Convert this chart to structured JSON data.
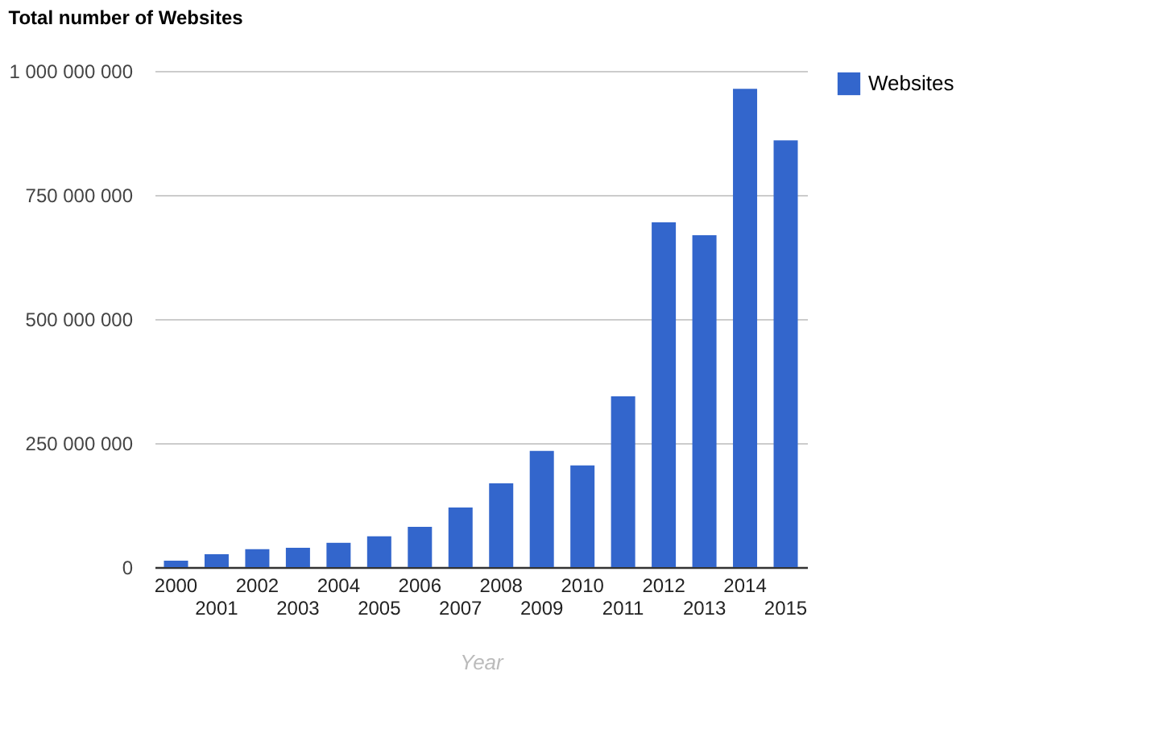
{
  "chart_data": {
    "type": "bar",
    "title": "Total number of Websites",
    "xlabel": "Year",
    "categories": [
      "2000",
      "2001",
      "2002",
      "2003",
      "2004",
      "2005",
      "2006",
      "2007",
      "2008",
      "2009",
      "2010",
      "2011",
      "2012",
      "2013",
      "2014",
      "2015"
    ],
    "series": [
      {
        "name": "Websites",
        "color": "#3366cc",
        "values": [
          13000000,
          26000000,
          36000000,
          39000000,
          49000000,
          62000000,
          81000000,
          120000000,
          169000000,
          234000000,
          205000000,
          344000000,
          695000000,
          669000000,
          964000000,
          860000000
        ]
      }
    ],
    "ylim": [
      0,
      1000000000
    ],
    "yticks": [
      {
        "value": 0,
        "label": "0"
      },
      {
        "value": 250000000,
        "label": "250 000 000"
      },
      {
        "value": 500000000,
        "label": "500 000 000"
      },
      {
        "value": 750000000,
        "label": "750 000 000"
      },
      {
        "value": 1000000000,
        "label": "1 000 000 000"
      }
    ],
    "grid": "y",
    "legend": "top right"
  }
}
